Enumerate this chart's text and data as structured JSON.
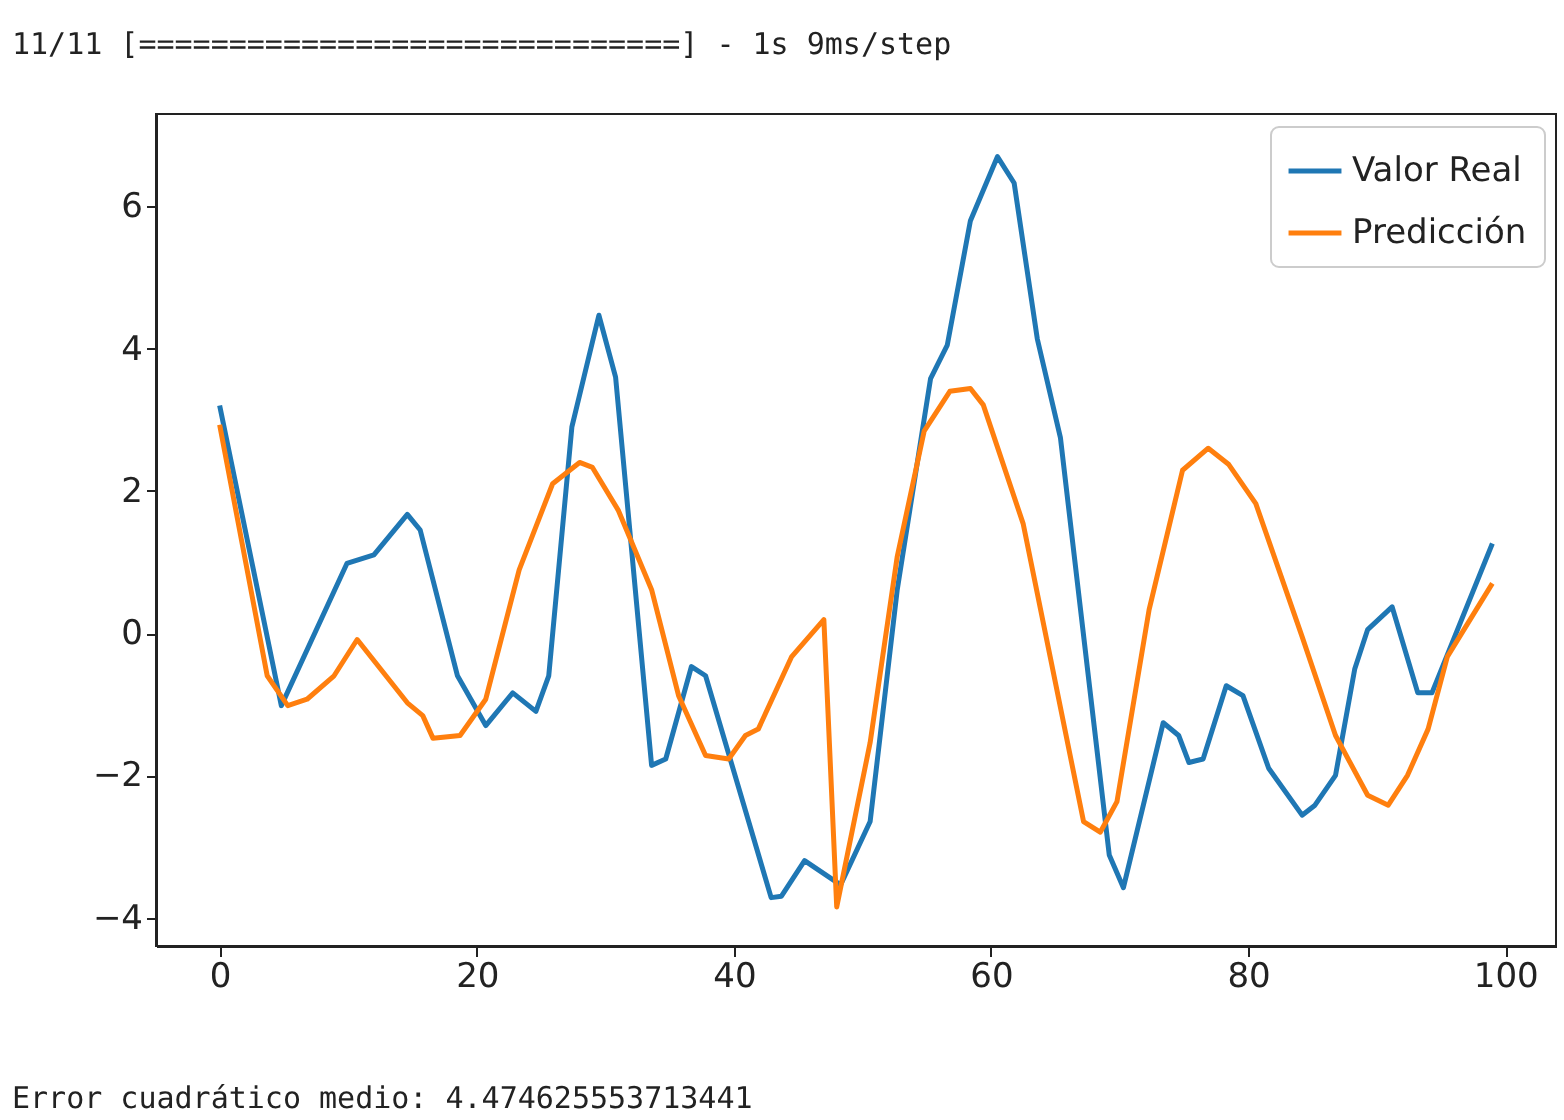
{
  "chart_data": {
    "type": "line",
    "annotations": [
      "11/11 [==============================] - 1s 9ms/step",
      "Error cuadrático medio: 4.474625553713441"
    ],
    "series": [
      {
        "name": "Valor Real",
        "color": "#1f77b4",
        "x": [
          0,
          4.8,
          9.9,
          12,
          14.6,
          15.6,
          18.5,
          20.7,
          22.8,
          24.6,
          25.6,
          27.4,
          29.5,
          30.8,
          33.6,
          34.7,
          36.7,
          37.8,
          42.9,
          43.7,
          45.5,
          48.3,
          50.6,
          52.7,
          55.3,
          56.6,
          58.4,
          60.5,
          61.8,
          63.6,
          65.4,
          69.2,
          70.3,
          73.4,
          74.6,
          75.4,
          76.5,
          78.3,
          79.6,
          81.6,
          84.2,
          85.2,
          86.8,
          88.3,
          89.3,
          91.2,
          93.2,
          94.3,
          99
        ],
        "values": [
          3.2,
          -1.02,
          0.98,
          1.1,
          1.67,
          1.45,
          -0.6,
          -1.3,
          -0.84,
          -1.1,
          -0.6,
          2.9,
          4.47,
          3.6,
          -1.86,
          -1.77,
          -0.47,
          -0.6,
          -3.72,
          -3.7,
          -3.2,
          -3.54,
          -2.65,
          0.6,
          3.58,
          4.05,
          5.8,
          6.7,
          6.33,
          4.14,
          2.75,
          -3.12,
          -3.58,
          -1.26,
          -1.44,
          -1.82,
          -1.77,
          -0.74,
          -0.88,
          -1.9,
          -2.56,
          -2.42,
          -2.0,
          -0.5,
          0.05,
          0.37,
          -0.84,
          -0.84,
          1.26
        ]
      },
      {
        "name": "Predicción",
        "color": "#ff7f0e",
        "x": [
          0,
          3.7,
          5.3,
          6.8,
          8.9,
          10.7,
          14.6,
          15.8,
          16.6,
          18.7,
          20.7,
          23.3,
          25.9,
          28,
          29,
          31,
          33.6,
          35.7,
          37.8,
          39.6,
          40.9,
          41.9,
          44.5,
          47,
          48,
          50.6,
          52.7,
          54.8,
          56.8,
          58.4,
          59.4,
          62.5,
          64.6,
          67.2,
          68.5,
          69.8,
          72.3,
          74.9,
          76.9,
          78.5,
          80.6,
          84.2,
          86.8,
          89.3,
          90.9,
          92.4,
          94,
          95.5,
          99
        ],
        "values": [
          2.93,
          -0.6,
          -1.02,
          -0.93,
          -0.6,
          -0.09,
          -0.98,
          -1.16,
          -1.48,
          -1.44,
          -0.93,
          0.89,
          2.1,
          2.4,
          2.33,
          1.73,
          0.61,
          -0.88,
          -1.72,
          -1.77,
          -1.44,
          -1.35,
          -0.33,
          0.19,
          -3.85,
          -1.54,
          1.07,
          2.84,
          3.4,
          3.44,
          3.21,
          1.54,
          -0.33,
          -2.65,
          -2.8,
          -2.37,
          0.33,
          2.29,
          2.6,
          2.37,
          1.82,
          -0.05,
          -1.44,
          -2.28,
          -2.42,
          -2.0,
          -1.35,
          -0.33,
          0.7
        ]
      }
    ],
    "xlim": [
      -4.95,
      103.95
    ],
    "ylim": [
      -4.4,
      7.3
    ],
    "xticks": [
      0,
      20,
      40,
      60,
      80,
      100
    ],
    "yticks": [
      -4,
      -2,
      0,
      2,
      4,
      6
    ],
    "grid": false,
    "legend": "top right",
    "line_style": "solid",
    "marker": "none"
  }
}
